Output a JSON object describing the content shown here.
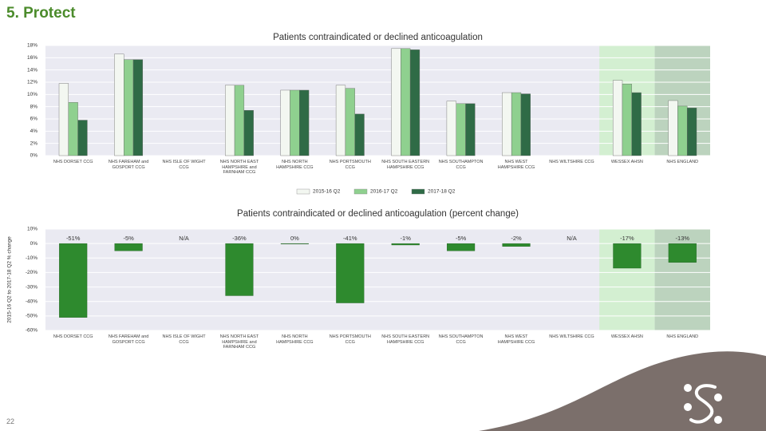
{
  "page_title": "5. Protect",
  "page_number": "22",
  "chart_data": [
    {
      "type": "grouped_bar",
      "title": "Patients contraindicated or declined anticoagulation",
      "categories": [
        "NHS DORSET CCG",
        "NHS FAREHAM and GOSPORT CCG",
        "NHS ISLE OF WIGHT CCG",
        "NHS NORTH EAST HAMPSHIRE and FARNHAM CCG",
        "NHS NORTH HAMPSHIRE CCG",
        "NHS PORTSMOUTH CCG",
        "NHS SOUTH EASTERN HAMPSHIRE CCG",
        "NHS SOUTHAMPTON CCG",
        "NHS WEST HAMPSHIRE CCG",
        "NHS WILTSHIRE CCG",
        "WESSEX AHSN",
        "NHS ENGLAND"
      ],
      "category_backgrounds": [
        null,
        null,
        null,
        null,
        null,
        null,
        null,
        null,
        null,
        null,
        "#d3efd1",
        "#bcd3be"
      ],
      "series": [
        {
          "name": "2015-16 Q2",
          "color": "#f3f7f1",
          "values": [
            11.8,
            16.6,
            null,
            11.5,
            10.7,
            11.5,
            17.5,
            8.9,
            10.3,
            null,
            12.3,
            9.0
          ]
        },
        {
          "name": "2016-17 Q2",
          "color": "#8fd08f",
          "values": [
            8.7,
            15.7,
            null,
            11.5,
            10.7,
            11.0,
            17.5,
            8.5,
            10.3,
            null,
            11.7,
            8.1
          ]
        },
        {
          "name": "2017-18 Q2",
          "color": "#2f6b46",
          "values": [
            5.8,
            15.7,
            null,
            7.4,
            10.7,
            6.8,
            17.3,
            8.5,
            10.1,
            null,
            10.3,
            7.8
          ]
        }
      ],
      "ylim": [
        0,
        18
      ],
      "yticks": [
        {
          "value": 0,
          "label": "0%"
        },
        {
          "value": 2,
          "label": "2%"
        },
        {
          "value": 4,
          "label": "4%"
        },
        {
          "value": 6,
          "label": "6%"
        },
        {
          "value": 8,
          "label": "8%"
        },
        {
          "value": 10,
          "label": "10%"
        },
        {
          "value": 12,
          "label": "12%"
        },
        {
          "value": 14,
          "label": "14%"
        },
        {
          "value": 16,
          "label": "16%"
        },
        {
          "value": 18,
          "label": "18%"
        }
      ],
      "grid": true
    },
    {
      "type": "bar",
      "title": "Patients contraindicated or declined anticoagulation (percent change)",
      "y_label": "2015-16 Q2 to 2017-18 Q2 % change",
      "categories": [
        "NHS DORSET CCG",
        "NHS FAREHAM and GOSPORT CCG",
        "NHS ISLE OF WIGHT CCG",
        "NHS NORTH EAST HAMPSHIRE and FARNHAM CCG",
        "NHS NORTH HAMPSHIRE CCG",
        "NHS PORTSMOUTH CCG",
        "NHS SOUTH EASTERN HAMPSHIRE CCG",
        "NHS SOUTHAMPTON CCG",
        "NHS WEST HAMPSHIRE CCG",
        "NHS WILTSHIRE CCG",
        "WESSEX AHSN",
        "NHS ENGLAND"
      ],
      "category_backgrounds": [
        null,
        null,
        null,
        null,
        null,
        null,
        null,
        null,
        null,
        null,
        "#d3efd1",
        "#bcd3be"
      ],
      "values": [
        -51,
        -5,
        null,
        -36,
        0,
        -41,
        -1,
        -5,
        -2,
        null,
        -17,
        -13
      ],
      "value_labels": [
        "-51%",
        "-5%",
        "N/A",
        "-36%",
        "0%",
        "-41%",
        "-1%",
        "-5%",
        "-2%",
        "N/A",
        "-17%",
        "-13%"
      ],
      "color": "#2e8a2e",
      "ylim": [
        -60,
        10
      ],
      "yticks": [
        {
          "value": -60,
          "label": "-60%"
        },
        {
          "value": -50,
          "label": "-50%"
        },
        {
          "value": -40,
          "label": "-40%"
        },
        {
          "value": -30,
          "label": "-30%"
        },
        {
          "value": -20,
          "label": "-20%"
        },
        {
          "value": -10,
          "label": "-10%"
        },
        {
          "value": 0,
          "label": "0%"
        },
        {
          "value": 10,
          "label": "10%"
        }
      ],
      "grid": true
    }
  ]
}
